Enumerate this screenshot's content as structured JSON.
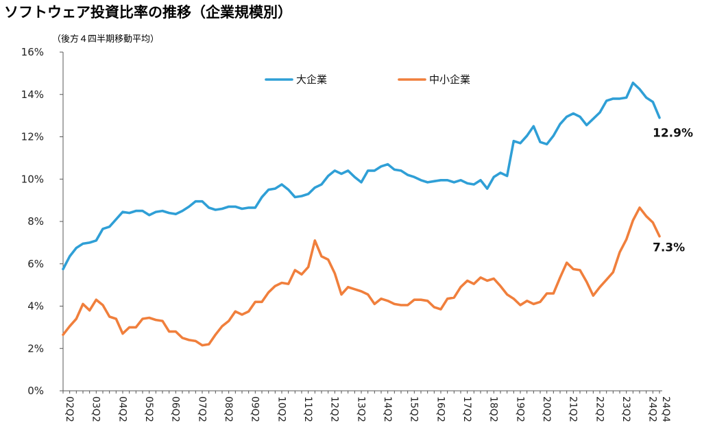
{
  "title": "ソフトウェア投資比率の推移（企業規模別）",
  "subtitle": "（後方４四半期移動平均）",
  "chart_data": {
    "type": "line",
    "title": "ソフトウェア投資比率の推移（企業規模別）",
    "subtitle": "（後方４四半期移動平均）",
    "xlabel": "",
    "ylabel": "",
    "ylim": [
      0,
      16
    ],
    "yticks": [
      "0%",
      "2%",
      "4%",
      "6%",
      "8%",
      "10%",
      "12%",
      "14%",
      "16%"
    ],
    "yticks_values": [
      0,
      2,
      4,
      6,
      8,
      10,
      12,
      14,
      16
    ],
    "grid": false,
    "legend_position": "top",
    "x_tick_labels": [
      "02Q2",
      "03Q2",
      "04Q2",
      "05Q2",
      "06Q2",
      "07Q2",
      "08Q2",
      "09Q2",
      "10Q2",
      "11Q2",
      "12Q2",
      "13Q2",
      "14Q2",
      "15Q2",
      "16Q2",
      "17Q2",
      "18Q2",
      "19Q2",
      "20Q2",
      "21Q2",
      "22Q2",
      "23Q2",
      "24Q2",
      "24Q4"
    ],
    "x": [
      "02Q2",
      "02Q3",
      "02Q4",
      "03Q1",
      "03Q2",
      "03Q3",
      "03Q4",
      "04Q1",
      "04Q2",
      "04Q3",
      "04Q4",
      "05Q1",
      "05Q2",
      "05Q3",
      "05Q4",
      "06Q1",
      "06Q2",
      "06Q3",
      "06Q4",
      "07Q1",
      "07Q2",
      "07Q3",
      "07Q4",
      "08Q1",
      "08Q2",
      "08Q3",
      "08Q4",
      "09Q1",
      "09Q2",
      "09Q3",
      "09Q4",
      "10Q1",
      "10Q2",
      "10Q3",
      "10Q4",
      "11Q1",
      "11Q2",
      "11Q3",
      "11Q4",
      "12Q1",
      "12Q2",
      "12Q3",
      "12Q4",
      "13Q1",
      "13Q2",
      "13Q3",
      "13Q4",
      "14Q1",
      "14Q2",
      "14Q3",
      "14Q4",
      "15Q1",
      "15Q2",
      "15Q3",
      "15Q4",
      "16Q1",
      "16Q2",
      "16Q3",
      "16Q4",
      "17Q1",
      "17Q2",
      "17Q3",
      "17Q4",
      "18Q1",
      "18Q2",
      "18Q3",
      "18Q4",
      "19Q1",
      "19Q2",
      "19Q3",
      "19Q4",
      "20Q1",
      "20Q2",
      "20Q3",
      "20Q4",
      "21Q1",
      "21Q2",
      "21Q3",
      "21Q4",
      "22Q1",
      "22Q2",
      "22Q3",
      "22Q4",
      "23Q1",
      "23Q2",
      "23Q3",
      "23Q4",
      "24Q1",
      "24Q2",
      "24Q3",
      "24Q4"
    ],
    "series": [
      {
        "name": "大企業",
        "color": "#2f9fd6",
        "end_label": "12.9%",
        "values": [
          5.75,
          6.35,
          6.75,
          6.95,
          7.0,
          7.1,
          7.65,
          7.75,
          8.1,
          8.45,
          8.4,
          8.5,
          8.5,
          8.3,
          8.45,
          8.5,
          8.4,
          8.35,
          8.5,
          8.7,
          8.95,
          8.95,
          8.65,
          8.55,
          8.6,
          8.7,
          8.7,
          8.6,
          8.65,
          8.65,
          9.15,
          9.5,
          9.55,
          9.75,
          9.5,
          9.15,
          9.2,
          9.3,
          9.6,
          9.75,
          10.15,
          10.4,
          10.25,
          10.4,
          10.1,
          9.85,
          10.4,
          10.4,
          10.6,
          10.7,
          10.45,
          10.4,
          10.2,
          10.1,
          9.95,
          9.85,
          9.9,
          9.95,
          9.95,
          9.85,
          9.95,
          9.8,
          9.75,
          9.95,
          9.55,
          10.1,
          10.3,
          10.15,
          11.8,
          11.7,
          12.05,
          12.5,
          11.75,
          11.65,
          12.05,
          12.6,
          12.95,
          13.1,
          12.95,
          12.55,
          12.85,
          13.15,
          13.7,
          13.8,
          13.8,
          13.85,
          14.55,
          14.25,
          13.85,
          13.65,
          12.9
        ]
      },
      {
        "name": "中小企業",
        "color": "#f07f3c",
        "end_label": "7.3%",
        "values": [
          2.65,
          3.05,
          3.4,
          4.1,
          3.8,
          4.3,
          4.05,
          3.5,
          3.4,
          2.7,
          3.0,
          3.0,
          3.4,
          3.45,
          3.35,
          3.3,
          2.8,
          2.8,
          2.5,
          2.4,
          2.35,
          2.15,
          2.2,
          2.65,
          3.05,
          3.3,
          3.75,
          3.6,
          3.75,
          4.2,
          4.2,
          4.65,
          4.95,
          5.1,
          5.05,
          5.7,
          5.5,
          5.85,
          7.1,
          6.35,
          6.2,
          5.55,
          4.55,
          4.9,
          4.8,
          4.7,
          4.55,
          4.1,
          4.35,
          4.25,
          4.1,
          4.05,
          4.05,
          4.3,
          4.3,
          4.25,
          3.95,
          3.85,
          4.35,
          4.4,
          4.9,
          5.2,
          5.05,
          5.35,
          5.2,
          5.3,
          4.95,
          4.55,
          4.35,
          4.05,
          4.25,
          4.1,
          4.2,
          4.6,
          4.6,
          5.35,
          6.05,
          5.75,
          5.7,
          5.15,
          4.5,
          4.9,
          5.25,
          5.6,
          6.55,
          7.15,
          8.05,
          8.65,
          8.25,
          7.95,
          7.3
        ]
      }
    ]
  }
}
